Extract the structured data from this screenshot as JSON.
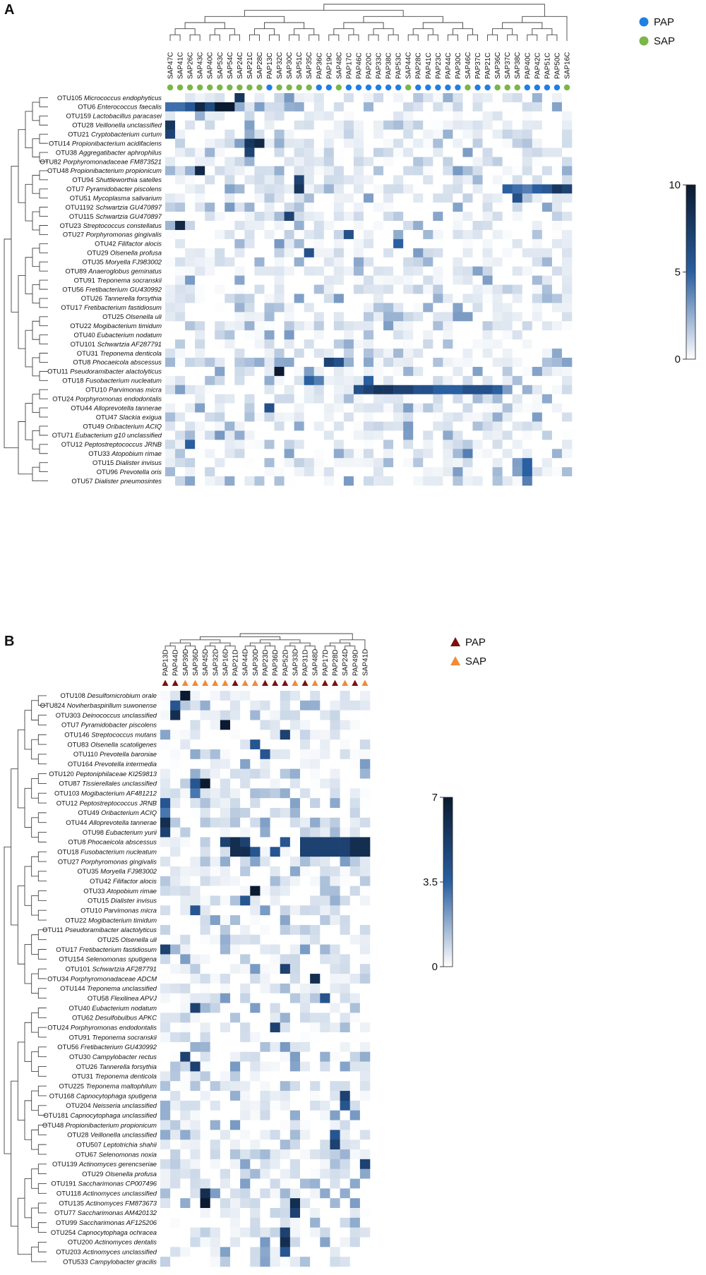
{
  "chart_data": [
    {
      "type": "heatmap",
      "panel_label": "A",
      "columns": [
        "SAP47C",
        "SAP41C",
        "SAP26C",
        "SAP43C",
        "SAP40C",
        "SAP53C",
        "SAP54C",
        "SAP24C",
        "SAP21C",
        "SAP28C",
        "PAP13C",
        "SAP32C",
        "SAP30C",
        "SAP51C",
        "SAP35C",
        "PAP36C",
        "PAP19C",
        "SAP48C",
        "PAP17C",
        "PAP46C",
        "PAP20C",
        "PAP33C",
        "PAP38C",
        "PAP53C",
        "SAP44C",
        "PAP28C",
        "PAP41C",
        "PAP23C",
        "PAP44C",
        "PAP30C",
        "SAP46C",
        "PAP37C",
        "PAP21C",
        "SAP36C",
        "SAP37C",
        "SAP38C",
        "PAP40C",
        "PAP42C",
        "PAP51C",
        "PAP50C",
        "SAP16C"
      ],
      "column_groups": [
        "SAP",
        "SAP",
        "SAP",
        "SAP",
        "SAP",
        "SAP",
        "SAP",
        "SAP",
        "SAP",
        "SAP",
        "PAP",
        "SAP",
        "SAP",
        "SAP",
        "SAP",
        "PAP",
        "PAP",
        "SAP",
        "PAP",
        "PAP",
        "PAP",
        "PAP",
        "PAP",
        "PAP",
        "SAP",
        "PAP",
        "PAP",
        "PAP",
        "PAP",
        "PAP",
        "SAP",
        "PAP",
        "PAP",
        "SAP",
        "SAP",
        "SAP",
        "PAP",
        "PAP",
        "PAP",
        "PAP",
        "SAP"
      ],
      "rows": [
        {
          "id": "OTU105",
          "taxon": "Micrococcus endophyticus"
        },
        {
          "id": "OTU6",
          "taxon": "Enterococcus faecalis"
        },
        {
          "id": "OTU159",
          "taxon": "Lactobacillus paracasei"
        },
        {
          "id": "OTU28",
          "taxon": "Veillonella unclassified"
        },
        {
          "id": "OTU21",
          "taxon": "Cryptobacterium curtum"
        },
        {
          "id": "OTU14",
          "taxon": "Propionibacterium acidifaciens"
        },
        {
          "id": "OTU38",
          "taxon": "Aggregatibacter aphrophilus"
        },
        {
          "id": "OTU82",
          "taxon": "Porphyromonadaceae FM873521"
        },
        {
          "id": "OTU48",
          "taxon": "Propionibacterium propionicum"
        },
        {
          "id": "OTU94",
          "taxon": "Shuttleworthia satelles"
        },
        {
          "id": "OTU7",
          "taxon": "Pyramidobacter piscolens"
        },
        {
          "id": "OTU51",
          "taxon": "Mycoplasma salivarium"
        },
        {
          "id": "OTU1192",
          "taxon": "Schwartzia GU470897"
        },
        {
          "id": "OTU115",
          "taxon": "Schwartzia GU470897"
        },
        {
          "id": "OTU23",
          "taxon": "Streptococcus constellatus"
        },
        {
          "id": "OTU27",
          "taxon": "Porphyromonas gingivalis"
        },
        {
          "id": "OTU42",
          "taxon": "Filifactor alocis"
        },
        {
          "id": "OTU29",
          "taxon": "Olsenella profusa"
        },
        {
          "id": "OTU35",
          "taxon": "Moryella FJ983002"
        },
        {
          "id": "OTU89",
          "taxon": "Anaeroglobus geminatus"
        },
        {
          "id": "OTU91",
          "taxon": "Treponema socranskii"
        },
        {
          "id": "OTU56",
          "taxon": "Fretibacterium GU430992"
        },
        {
          "id": "OTU26",
          "taxon": "Tannerella forsythia"
        },
        {
          "id": "OTU17",
          "taxon": "Fretibacterium fastidiosum"
        },
        {
          "id": "OTU25",
          "taxon": "Olsenella uli"
        },
        {
          "id": "OTU22",
          "taxon": "Mogibacterium timidum"
        },
        {
          "id": "OTU40",
          "taxon": "Eubacterium nodatum"
        },
        {
          "id": "OTU101",
          "taxon": "Schwartzia AF287791"
        },
        {
          "id": "OTU31",
          "taxon": "Treponema denticola"
        },
        {
          "id": "OTU8",
          "taxon": "Phocaeicola abscessus"
        },
        {
          "id": "OTU11",
          "taxon": "Pseudoramibacter alactolyticus"
        },
        {
          "id": "OTU18",
          "taxon": "Fusobacterium nucleatum"
        },
        {
          "id": "OTU10",
          "taxon": "Parvimonas micra"
        },
        {
          "id": "OTU24",
          "taxon": "Porphyromonas endodontalis"
        },
        {
          "id": "OTU44",
          "taxon": "Alloprevotella tannerae"
        },
        {
          "id": "OTU47",
          "taxon": "Slackia exigua"
        },
        {
          "id": "OTU49",
          "taxon": "Oribacterium ACIQ"
        },
        {
          "id": "OTU71",
          "taxon": "Eubacterium g10 unclassified"
        },
        {
          "id": "OTU12",
          "taxon": "Peptostreptococcus JRNB"
        },
        {
          "id": "OTU33",
          "taxon": "Atopobium rimae"
        },
        {
          "id": "OTU15",
          "taxon": "Dialister invisus"
        },
        {
          "id": "OTU96",
          "taxon": "Prevotella oris"
        },
        {
          "id": "OTU57",
          "taxon": "Dialister pneumosintes"
        }
      ],
      "value_range": [
        0,
        10
      ],
      "colorbar_ticks": [
        "0",
        "5",
        "10"
      ],
      "legend": [
        {
          "label": "PAP",
          "color": "#1f7fe5",
          "marker": "circle"
        },
        {
          "label": "SAP",
          "color": "#7ab648",
          "marker": "circle"
        }
      ],
      "color_scale": [
        "#ffffff",
        "#2a5fa0",
        "#0b1a30"
      ],
      "hotspots": [
        [
          1,
          0,
          4.5
        ],
        [
          1,
          1,
          4.5
        ],
        [
          1,
          2,
          5.5
        ],
        [
          1,
          3,
          9
        ],
        [
          1,
          4,
          6.5
        ],
        [
          1,
          5,
          10
        ],
        [
          1,
          6,
          10
        ],
        [
          0,
          7,
          8
        ],
        [
          1,
          8,
          0.8
        ],
        [
          1,
          9,
          3
        ],
        [
          1,
          12,
          2.5
        ],
        [
          3,
          0,
          8
        ],
        [
          4,
          0,
          7
        ],
        [
          5,
          8,
          8
        ],
        [
          5,
          9,
          9
        ],
        [
          6,
          8,
          7
        ],
        [
          8,
          3,
          9
        ],
        [
          9,
          13,
          7
        ],
        [
          10,
          13,
          8
        ],
        [
          10,
          34,
          5
        ],
        [
          10,
          35,
          4.5
        ],
        [
          10,
          36,
          4
        ],
        [
          10,
          37,
          5
        ],
        [
          10,
          38,
          5.5
        ],
        [
          10,
          39,
          8
        ],
        [
          10,
          40,
          7
        ],
        [
          11,
          35,
          6
        ],
        [
          13,
          12,
          7
        ],
        [
          14,
          1,
          9
        ],
        [
          15,
          18,
          6
        ],
        [
          16,
          23,
          5
        ],
        [
          17,
          14,
          6
        ],
        [
          29,
          16,
          7
        ],
        [
          29,
          17,
          6
        ],
        [
          30,
          11,
          10
        ],
        [
          31,
          14,
          5
        ],
        [
          31,
          15,
          4
        ],
        [
          31,
          20,
          5
        ],
        [
          32,
          19,
          6
        ],
        [
          32,
          20,
          7
        ],
        [
          32,
          21,
          8
        ],
        [
          32,
          22,
          8
        ],
        [
          32,
          23,
          7
        ],
        [
          32,
          24,
          7
        ],
        [
          32,
          25,
          6
        ],
        [
          32,
          26,
          6
        ],
        [
          32,
          27,
          5
        ],
        [
          32,
          28,
          5
        ],
        [
          32,
          29,
          5
        ],
        [
          32,
          30,
          6
        ],
        [
          32,
          31,
          6
        ],
        [
          32,
          32,
          6
        ],
        [
          32,
          33,
          5
        ],
        [
          34,
          10,
          6
        ],
        [
          38,
          2,
          5
        ],
        [
          39,
          30,
          4
        ],
        [
          40,
          36,
          5
        ],
        [
          41,
          36,
          5
        ],
        [
          42,
          36,
          4
        ]
      ]
    },
    {
      "type": "heatmap",
      "panel_label": "B",
      "columns": [
        "PAP13D",
        "PAP44D",
        "SAP39D",
        "SAP36D",
        "SAP45D",
        "SAP32D",
        "SAP16D",
        "PAP21D",
        "SAP44D",
        "SAP30D",
        "PAP23D",
        "PAP36D",
        "PAP52D",
        "SAP33D",
        "PAP31D",
        "SAP48D",
        "PAP17D",
        "PAP28D",
        "SAP24D",
        "PAP49D",
        "SAP41D"
      ],
      "column_groups": [
        "PAP",
        "PAP",
        "SAP",
        "SAP",
        "SAP",
        "SAP",
        "SAP",
        "PAP",
        "SAP",
        "SAP",
        "PAP",
        "PAP",
        "PAP",
        "SAP",
        "PAP",
        "SAP",
        "PAP",
        "PAP",
        "SAP",
        "PAP",
        "SAP"
      ],
      "rows": [
        {
          "id": "OTU108",
          "taxon": "Desulfomicrobium orale"
        },
        {
          "id": "OTU824",
          "taxon": "Noviherbaspirillum suwonense"
        },
        {
          "id": "OTU303",
          "taxon": "Deinococcus unclassified"
        },
        {
          "id": "OTU7",
          "taxon": "Pyramidobacter piscolens"
        },
        {
          "id": "OTU146",
          "taxon": "Streptococcus mutans"
        },
        {
          "id": "OTU83",
          "taxon": "Olsenella scatoligenes"
        },
        {
          "id": "OTU110",
          "taxon": "Prevotella baroniae"
        },
        {
          "id": "OTU164",
          "taxon": "Prevotella intermedia"
        },
        {
          "id": "OTU120",
          "taxon": "Peptoniphilaceae KI259813"
        },
        {
          "id": "OTU87",
          "taxon": "Tissierellales unclassified"
        },
        {
          "id": "OTU103",
          "taxon": "Mogibacterium AF481212"
        },
        {
          "id": "OTU12",
          "taxon": "Peptostreptococcus JRNB"
        },
        {
          "id": "OTU49",
          "taxon": "Oribacterium ACIQ"
        },
        {
          "id": "OTU44",
          "taxon": "Alloprevotella tannerae"
        },
        {
          "id": "OTU98",
          "taxon": "Eubacterium yurii"
        },
        {
          "id": "OTU8",
          "taxon": "Phocaeicola abscessus"
        },
        {
          "id": "OTU18",
          "taxon": "Fusobacterium nucleatum"
        },
        {
          "id": "OTU27",
          "taxon": "Porphyromonas gingivalis"
        },
        {
          "id": "OTU35",
          "taxon": "Moryella FJ983002"
        },
        {
          "id": "OTU42",
          "taxon": "Filifactor alocis"
        },
        {
          "id": "OTU33",
          "taxon": "Atopobium rimae"
        },
        {
          "id": "OTU15",
          "taxon": "Dialister invisus"
        },
        {
          "id": "OTU10",
          "taxon": "Parvimonas micra"
        },
        {
          "id": "OTU22",
          "taxon": "Mogibacterium timidum"
        },
        {
          "id": "OTU11",
          "taxon": "Pseudoramibacter alactolyticus"
        },
        {
          "id": "OTU25",
          "taxon": "Olsenella uli"
        },
        {
          "id": "OTU17",
          "taxon": "Fretibacterium fastidiosum"
        },
        {
          "id": "OTU154",
          "taxon": "Selenomonas sputigena"
        },
        {
          "id": "OTU101",
          "taxon": "Schwartzia AF287791"
        },
        {
          "id": "OTU34",
          "taxon": "Porphyromonadaceae ADCM"
        },
        {
          "id": "OTU144",
          "taxon": "Treponema unclassified"
        },
        {
          "id": "OTU58",
          "taxon": "Flexilinea APVJ"
        },
        {
          "id": "OTU40",
          "taxon": "Eubacterium nodatum"
        },
        {
          "id": "OTU62",
          "taxon": "Desulfobulbus APKC"
        },
        {
          "id": "OTU24",
          "taxon": "Porphyromonas endodontalis"
        },
        {
          "id": "OTU91",
          "taxon": "Treponema socranskii"
        },
        {
          "id": "OTU56",
          "taxon": "Fretibacterium GU430992"
        },
        {
          "id": "OTU30",
          "taxon": "Campylobacter rectus"
        },
        {
          "id": "OTU26",
          "taxon": "Tannerella forsythia"
        },
        {
          "id": "OTU31",
          "taxon": "Treponema denticola"
        },
        {
          "id": "OTU225",
          "taxon": "Treponema maltophilum"
        },
        {
          "id": "OTU168",
          "taxon": "Capnocytophaga sputigena"
        },
        {
          "id": "OTU204",
          "taxon": "Neisseria unclassified"
        },
        {
          "id": "OTU181",
          "taxon": "Capnocytophaga unclassified"
        },
        {
          "id": "OTU48",
          "taxon": "Propionibacterium propionicum"
        },
        {
          "id": "OTU28",
          "taxon": "Veillonella unclassified"
        },
        {
          "id": "OTU507",
          "taxon": "Leptotrichia shahii"
        },
        {
          "id": "OTU67",
          "taxon": "Selenomonas noxia"
        },
        {
          "id": "OTU139",
          "taxon": "Actinomyces gerencseriae"
        },
        {
          "id": "OTU29",
          "taxon": "Olsenella profusa"
        },
        {
          "id": "OTU191",
          "taxon": "Saccharimonas CP007496"
        },
        {
          "id": "OTU118",
          "taxon": "Actinomyces unclassified"
        },
        {
          "id": "OTU135",
          "taxon": "Actinomyces FM873673"
        },
        {
          "id": "OTU77",
          "taxon": "Saccharimonas AM420132"
        },
        {
          "id": "OTU99",
          "taxon": "Saccharimonas AF125206"
        },
        {
          "id": "OTU254",
          "taxon": "Capnocytophaga ochracea"
        },
        {
          "id": "OTU200",
          "taxon": "Actinomyces dentalis"
        },
        {
          "id": "OTU203",
          "taxon": "Actinomyces unclassified"
        },
        {
          "id": "OTU533",
          "taxon": "Campylobacter gracilis"
        }
      ],
      "value_range": [
        0,
        7
      ],
      "colorbar_ticks": [
        "0",
        "3.5",
        "7"
      ],
      "legend": [
        {
          "label": "PAP",
          "color": "#7a1010",
          "marker": "triangle"
        },
        {
          "label": "SAP",
          "color": "#f08a3a",
          "marker": "triangle"
        }
      ],
      "color_scale": [
        "#ffffff",
        "#2a5fa0",
        "#0b1a30"
      ],
      "hotspots": [
        [
          0,
          2,
          7
        ],
        [
          1,
          1,
          4
        ],
        [
          2,
          1,
          6
        ],
        [
          3,
          6,
          7
        ],
        [
          4,
          12,
          5
        ],
        [
          5,
          9,
          4
        ],
        [
          6,
          10,
          4
        ],
        [
          9,
          3,
          4
        ],
        [
          9,
          4,
          7
        ],
        [
          10,
          3,
          3
        ],
        [
          11,
          0,
          4
        ],
        [
          12,
          0,
          3
        ],
        [
          13,
          0,
          6
        ],
        [
          14,
          0,
          5
        ],
        [
          15,
          6,
          5
        ],
        [
          15,
          7,
          6
        ],
        [
          15,
          8,
          5
        ],
        [
          15,
          12,
          4
        ],
        [
          15,
          14,
          5
        ],
        [
          15,
          15,
          5
        ],
        [
          15,
          16,
          5
        ],
        [
          15,
          17,
          5
        ],
        [
          15,
          18,
          5
        ],
        [
          15,
          19,
          6
        ],
        [
          15,
          20,
          6
        ],
        [
          16,
          7,
          6
        ],
        [
          16,
          8,
          6
        ],
        [
          16,
          9,
          4
        ],
        [
          16,
          11,
          4
        ],
        [
          16,
          14,
          5
        ],
        [
          16,
          15,
          5
        ],
        [
          16,
          16,
          5
        ],
        [
          16,
          17,
          5
        ],
        [
          16,
          18,
          5
        ],
        [
          16,
          19,
          6
        ],
        [
          16,
          20,
          6
        ],
        [
          20,
          9,
          7
        ],
        [
          21,
          8,
          4
        ],
        [
          22,
          3,
          4
        ],
        [
          26,
          0,
          5
        ],
        [
          28,
          12,
          5
        ],
        [
          29,
          15,
          6
        ],
        [
          31,
          16,
          4
        ],
        [
          32,
          3,
          5
        ],
        [
          34,
          11,
          5
        ],
        [
          37,
          2,
          5
        ],
        [
          38,
          3,
          5
        ],
        [
          41,
          18,
          5
        ],
        [
          42,
          18,
          4
        ],
        [
          45,
          17,
          4
        ],
        [
          46,
          17,
          5
        ],
        [
          48,
          20,
          5
        ],
        [
          51,
          4,
          6
        ],
        [
          52,
          4,
          7
        ],
        [
          52,
          13,
          6
        ],
        [
          53,
          13,
          5
        ],
        [
          55,
          12,
          5
        ],
        [
          56,
          12,
          6
        ],
        [
          57,
          12,
          4
        ]
      ]
    }
  ]
}
